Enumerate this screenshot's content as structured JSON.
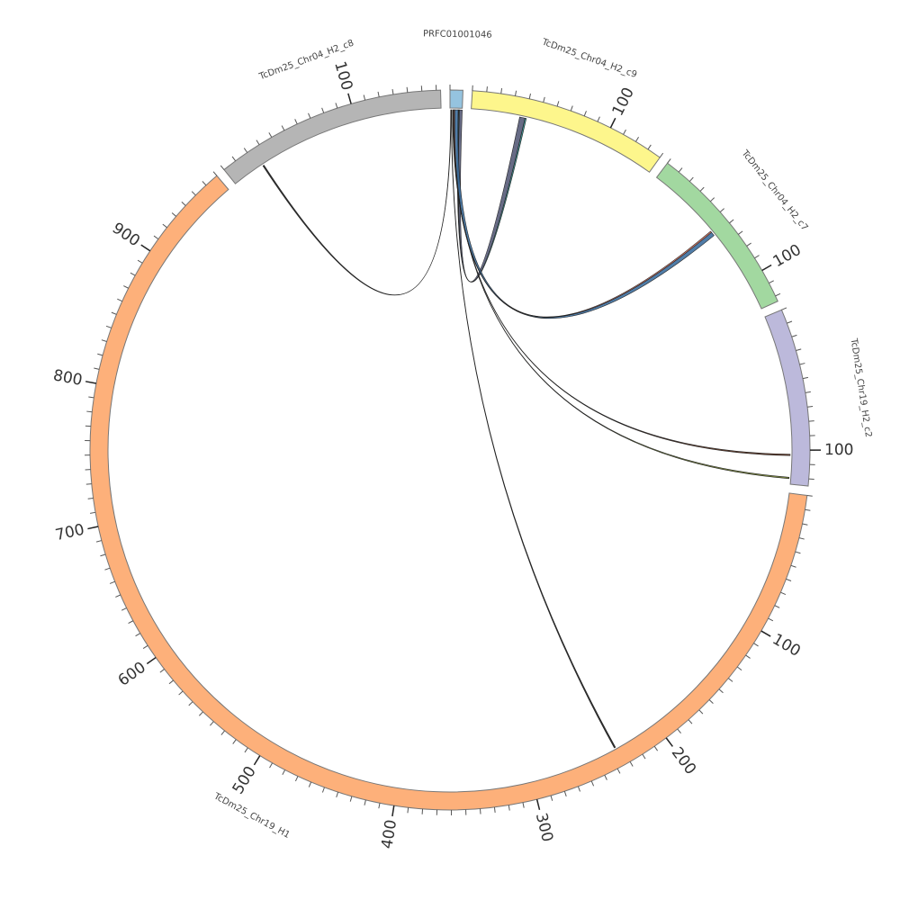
{
  "chart_data": {
    "type": "chord",
    "gap_degrees": 1.5,
    "minor_tick_step": 10,
    "segments": [
      {
        "name": "PRFC01001046",
        "length": 9,
        "color": "#95c3df",
        "ticks": []
      },
      {
        "name": "TcDm25_Chr04_H2_c9",
        "length": 140,
        "color": "#fdf68c",
        "ticks": [
          100
        ]
      },
      {
        "name": "TcDm25_Chr04_H2_c7",
        "length": 124,
        "color": "#a2d8a0",
        "ticks": [
          100
        ]
      },
      {
        "name": "TcDm25_Chr19_H2_c2",
        "length": 125,
        "color": "#bcb9db",
        "ticks": [
          100
        ]
      },
      {
        "name": "TcDm25_Chr19_H1",
        "length": 970,
        "color": "#fdb07a",
        "ticks": [
          100,
          200,
          300,
          400,
          500,
          600,
          700,
          800,
          900
        ]
      },
      {
        "name": "TcDm25_Chr04_H2_c8",
        "length": 163,
        "color": "#b5b5b5",
        "ticks": [
          100
        ]
      }
    ],
    "links": [
      {
        "source": 0,
        "source_range": [
          6,
          9
        ],
        "target": 1,
        "target_range": [
          36,
          40
        ],
        "color": "#575b78"
      },
      {
        "source": 0,
        "source_range": [
          6.5,
          7
        ],
        "target": 1,
        "target_range": [
          40,
          41
        ],
        "color": "#2f8f8f"
      },
      {
        "source": 0,
        "source_range": [
          3,
          6
        ],
        "target": 2,
        "target_range": [
          57,
          60
        ],
        "color": "#3d6f9f"
      },
      {
        "source": 0,
        "source_range": [
          3,
          3.6
        ],
        "target": 2,
        "target_range": [
          56,
          57
        ],
        "color": "#e2765f"
      },
      {
        "source": 0,
        "source_range": [
          2,
          2.3
        ],
        "target": 3,
        "target_range": [
          103,
          104
        ],
        "color": "#5b2e1a"
      },
      {
        "source": 0,
        "source_range": [
          2.3,
          2.6
        ],
        "target": 3,
        "target_range": [
          120,
          121
        ],
        "color": "#6f7d2c"
      },
      {
        "source": 0,
        "source_range": [
          1,
          1.3
        ],
        "target": 4,
        "target_range": [
          234,
          235
        ],
        "color": "#1a1a1a"
      },
      {
        "source": 0,
        "source_range": [
          0.5,
          0.8
        ],
        "target": 5,
        "target_range": [
          24,
          25
        ],
        "color": "#1a1a1a"
      }
    ]
  }
}
